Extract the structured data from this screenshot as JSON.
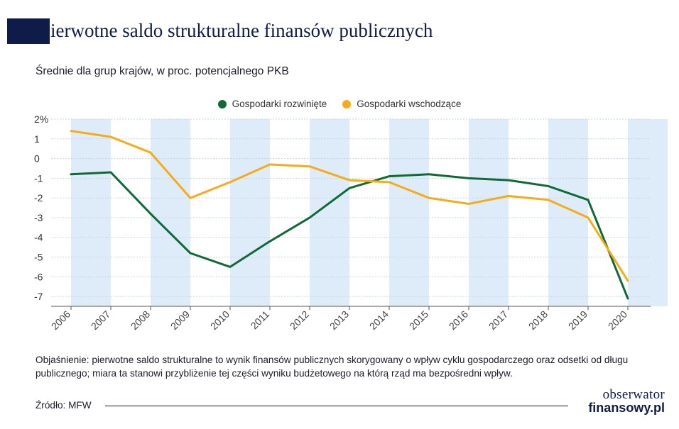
{
  "header": {
    "title": "Pierwotne saldo strukturalne finansów publicznych",
    "subtitle": "Średnie dla grup krajów, w proc. potencjalnego PKB"
  },
  "chart_data": {
    "type": "line",
    "x": [
      "2006",
      "2007",
      "2008",
      "2009",
      "2010",
      "2011",
      "2012",
      "2013",
      "2014",
      "2015",
      "2016",
      "2017",
      "2018",
      "2019",
      "2020"
    ],
    "series": [
      {
        "name": "Gospodarki rozwinięte",
        "color": "#0e6b35",
        "values": [
          -0.8,
          -0.7,
          -2.8,
          -4.8,
          -5.5,
          -4.2,
          -3.0,
          -1.5,
          -0.9,
          -0.8,
          -1.0,
          -1.1,
          -1.4,
          -2.1,
          -7.1
        ]
      },
      {
        "name": "Gospodarki wschodzące",
        "color": "#f5ac1b",
        "values": [
          1.4,
          1.1,
          0.3,
          -2.0,
          -1.2,
          -0.3,
          -0.4,
          -1.1,
          -1.2,
          -2.0,
          -2.3,
          -1.9,
          -2.1,
          -3.0,
          -6.2
        ]
      }
    ],
    "y_ticks": [
      "2%",
      "1",
      "0",
      "-1",
      "-2",
      "-3",
      "-4",
      "-5",
      "-6",
      "-7"
    ],
    "ylim": [
      -7.5,
      2
    ],
    "grid": true,
    "legend_position": "top-center",
    "band_color": "#deebf8",
    "grid_color": "#c7d3e3",
    "axis_color": "#555555"
  },
  "footer": {
    "note": "Objaśnienie: pierwotne saldo strukturalne to wynik finansów publicznych skorygowany o wpływ cyklu gospodarczego oraz odsetki od długu publicznego; miara ta stanowi przybliżenie tej części wyniku budżetowego na którą rząd ma bezpośredni wpływ.",
    "source": "Źródło: MFW",
    "logo_line1": "obserwator",
    "logo_line2": "finansowy.pl"
  }
}
